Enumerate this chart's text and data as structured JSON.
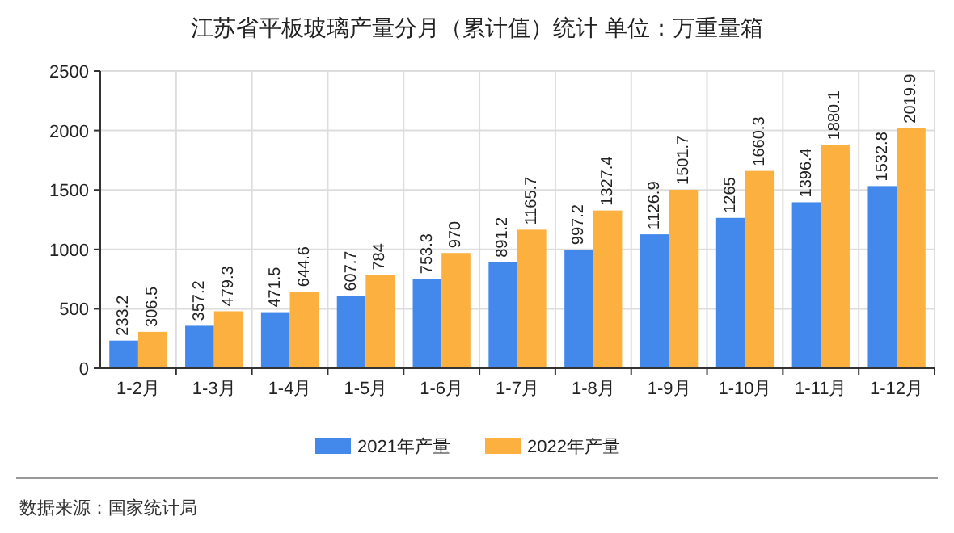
{
  "chart_data": {
    "type": "bar",
    "title": "江苏省平板玻璃产量分月（累计值）统计  单位：万重量箱",
    "categories": [
      "1-2月",
      "1-3月",
      "1-4月",
      "1-5月",
      "1-6月",
      "1-7月",
      "1-8月",
      "1-9月",
      "1-10月",
      "1-11月",
      "1-12月"
    ],
    "series": [
      {
        "name": "2021年产量",
        "color": "#4389eb",
        "values": [
          233.2,
          357.2,
          471.5,
          607.7,
          753.3,
          891.2,
          997.2,
          1126.9,
          1265,
          1396.4,
          1532.8
        ]
      },
      {
        "name": "2022年产量",
        "color": "#fbb03f",
        "values": [
          306.5,
          479.3,
          644.6,
          784,
          970,
          1165.7,
          1327.4,
          1501.7,
          1660.3,
          1880.1,
          2019.9
        ]
      }
    ],
    "ylim": [
      0,
      2500
    ],
    "yticks": [
      0,
      500,
      1000,
      1500,
      2000,
      2500
    ],
    "grid": true,
    "legend": "bottom",
    "data_labels": true,
    "annotations": [
      "数据来源：国家统计局"
    ]
  }
}
